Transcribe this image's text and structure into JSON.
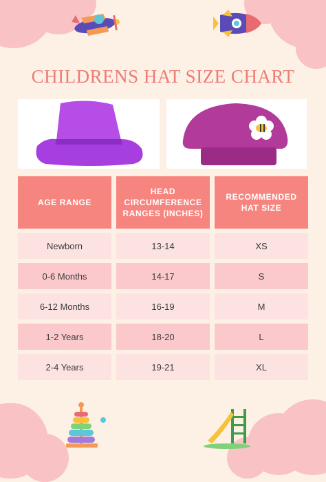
{
  "title": "CHILDRENS HAT SIZE CHART",
  "images": {
    "bucket_hat": "purple bucket hat",
    "beanie": "knitted magenta beanie with bee flower"
  },
  "colors": {
    "background": "#fdf1e6",
    "accent": "#ee7b76",
    "header": "#f7857f",
    "row_light": "#fde2e2",
    "row_dark": "#fbc9cc"
  },
  "table": {
    "headers": [
      "AGE RANGE",
      "HEAD CIRCUMFERENCE RANGES (INCHES)",
      "RECOMMENDED HAT SIZE"
    ],
    "rows": [
      [
        "Newborn",
        "13-14",
        "XS"
      ],
      [
        "0-6 Months",
        "14-17",
        "S"
      ],
      [
        "6-12 Months",
        "16-19",
        "M"
      ],
      [
        "1-2 Years",
        "18-20",
        "L"
      ],
      [
        "2-4 Years",
        "19-21",
        "XL"
      ]
    ]
  }
}
